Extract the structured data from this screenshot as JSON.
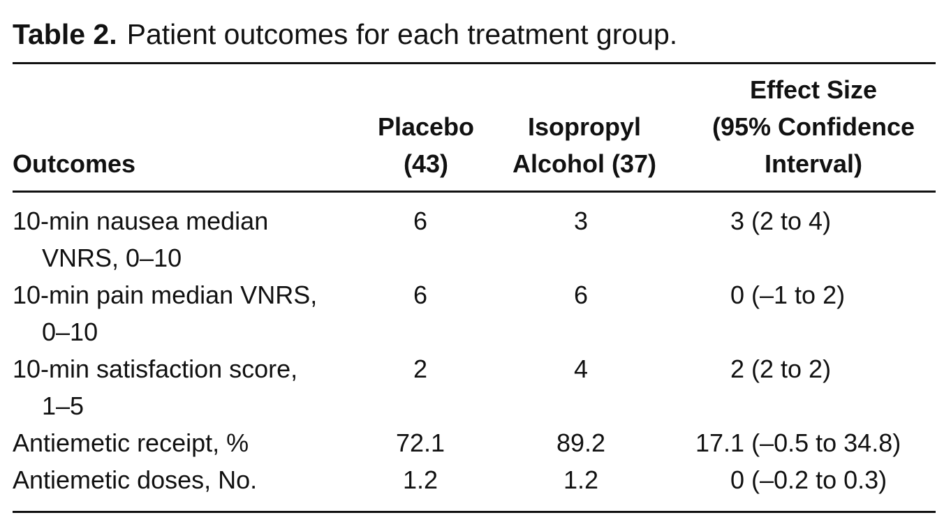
{
  "caption": {
    "label": "Table 2.",
    "text": "Patient outcomes for each treatment group."
  },
  "header": {
    "outcomes": "Outcomes",
    "placebo": [
      "Placebo",
      "(43)"
    ],
    "isopropyl": [
      "Isopropyl",
      "Alcohol (37)"
    ],
    "effect": [
      "Effect Size",
      "(95% Confidence",
      "Interval)"
    ]
  },
  "rows": [
    {
      "outcome": [
        "10-min nausea median",
        "VNRS, 0–10"
      ],
      "placebo": "6",
      "isopropyl": "3",
      "effect": "3 (2 to 4)"
    },
    {
      "outcome": [
        "10-min pain median VNRS,",
        "0–10"
      ],
      "placebo": "6",
      "isopropyl": "6",
      "effect": "0 (–1 to 2)"
    },
    {
      "outcome": [
        "10-min satisfaction score,",
        "1–5"
      ],
      "placebo": "2",
      "isopropyl": "4",
      "effect": "2 (2 to 2)"
    },
    {
      "outcome": [
        "Antiemetic receipt, %"
      ],
      "placebo": "72.1",
      "isopropyl": "89.2",
      "effect": "17.1 (–0.5 to 34.8)"
    },
    {
      "outcome": [
        "Antiemetic doses, No."
      ],
      "placebo": "1.2",
      "isopropyl": "1.2",
      "effect": "0 (–0.2 to 0.3)"
    }
  ]
}
